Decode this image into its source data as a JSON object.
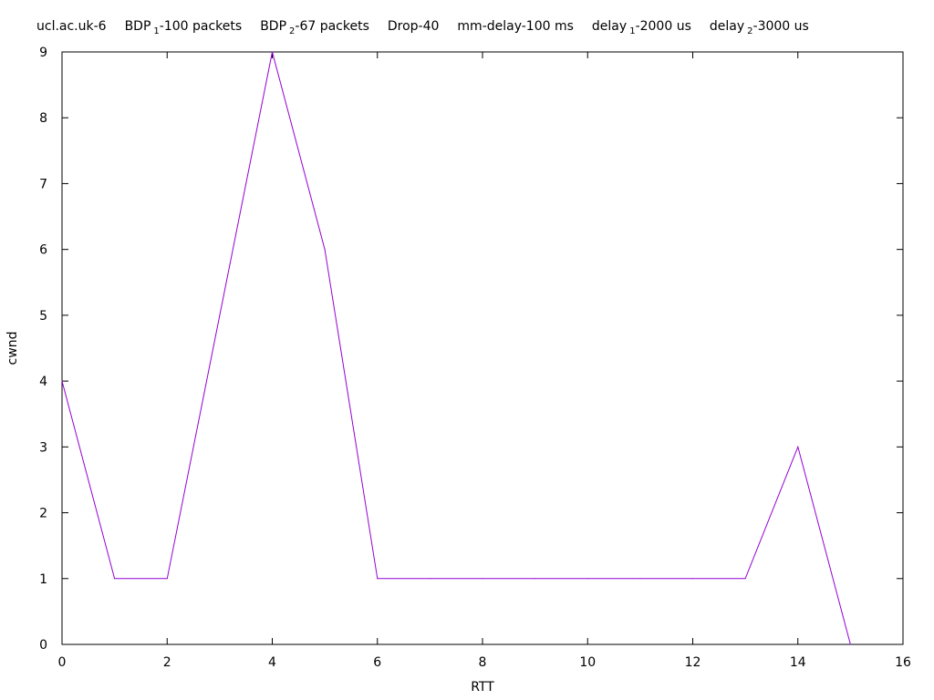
{
  "chart_data": {
    "type": "line",
    "title_parts": [
      {
        "base": "ucl.ac.uk-6",
        "sub": "",
        "suffix": ""
      },
      {
        "base": "BDP",
        "sub": "1",
        "suffix": "-100 packets"
      },
      {
        "base": "BDP",
        "sub": "2",
        "suffix": "-67 packets"
      },
      {
        "base": "Drop-40",
        "sub": "",
        "suffix": ""
      },
      {
        "base": "mm-delay-100 ms",
        "sub": "",
        "suffix": ""
      },
      {
        "base": "delay",
        "sub": "1",
        "suffix": "-2000 us"
      },
      {
        "base": "delay",
        "sub": "2",
        "suffix": "-3000 us"
      }
    ],
    "xlabel": "RTT",
    "ylabel": "cwnd",
    "xlim": [
      0,
      16
    ],
    "ylim": [
      0,
      9
    ],
    "xticks": [
      0,
      2,
      4,
      6,
      8,
      10,
      12,
      14,
      16
    ],
    "yticks": [
      0,
      1,
      2,
      3,
      4,
      5,
      6,
      7,
      8,
      9
    ],
    "grid": false,
    "series": [
      {
        "color": "#9400d3",
        "x": [
          0,
          1,
          2,
          3,
          4,
          5,
          6,
          7,
          8,
          9,
          10,
          11,
          12,
          13,
          14,
          15
        ],
        "y": [
          4,
          1,
          1,
          5,
          9,
          6,
          1,
          1,
          1,
          1,
          1,
          1,
          1,
          1,
          3,
          0
        ]
      }
    ]
  }
}
